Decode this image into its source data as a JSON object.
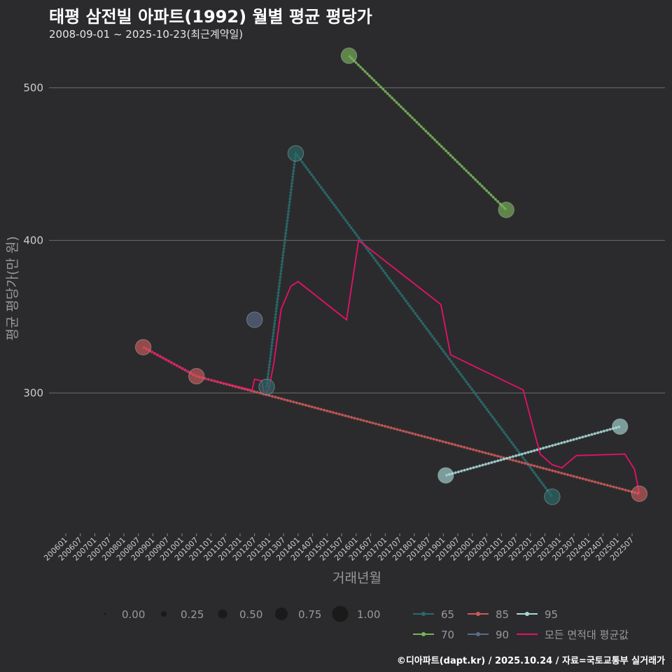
{
  "title": "태평 삼전빌 아파트(1992) 월별 평균 평당가",
  "subtitle": "2008-09-01 ~ 2025-10-23(최근계약일)",
  "caption": "©디아파트(dapt.kr) / 2025.10.24 / 자료=국토교통부 실거래가",
  "colors": {
    "background": "#2b2b2d",
    "grid": "#6e6e6e",
    "65": "#2a6b6b",
    "70": "#7ab35a",
    "85": "#cc5a5a",
    "90": "#5a6b8c",
    "95": "#a8d8d8",
    "all": "#e8106a"
  },
  "chart_data": {
    "type": "line",
    "title": "태평 삼전빌 아파트(1992) 월별 평균 평당가",
    "xlabel": "거래년월",
    "ylabel": "평균 평당가(만 원)",
    "ylim": [
      208,
      530
    ],
    "y_ticks": [
      300,
      400,
      500
    ],
    "x_tick_labels": [
      "200601",
      "200607",
      "200701",
      "200707",
      "200801",
      "200807",
      "200901",
      "200907",
      "201001",
      "201007",
      "201101",
      "201107",
      "201201",
      "201207",
      "201301",
      "201307",
      "201401",
      "201407",
      "201501",
      "201507",
      "201601",
      "201607",
      "201701",
      "201707",
      "201801",
      "201807",
      "201901",
      "201907",
      "202001",
      "202007",
      "202101",
      "202107",
      "202201",
      "202207",
      "202301",
      "202307",
      "202401",
      "202407",
      "202501",
      "202507"
    ],
    "series": [
      {
        "name": "65",
        "color_key": "65",
        "points": [
          {
            "x": "2012-12",
            "y": 304,
            "size": 0.45
          },
          {
            "x": "2013-12",
            "y": 457,
            "size": 0.45
          },
          {
            "x": "2022-10",
            "y": 232,
            "size": 0.45
          }
        ],
        "trend": [
          {
            "x": "2012-12",
            "y": 304
          },
          {
            "x": "2013-12",
            "y": 457
          },
          {
            "x": "2022-10",
            "y": 232
          }
        ]
      },
      {
        "name": "70",
        "color_key": "70",
        "points": [
          {
            "x": "2015-10",
            "y": 521,
            "size": 0.45
          },
          {
            "x": "2021-03",
            "y": 420,
            "size": 0.45
          }
        ],
        "trend": [
          {
            "x": "2015-10",
            "y": 521
          },
          {
            "x": "2021-03",
            "y": 420
          }
        ]
      },
      {
        "name": "85",
        "color_key": "85",
        "points": [
          {
            "x": "2008-09",
            "y": 330,
            "size": 0.45
          },
          {
            "x": "2010-07",
            "y": 311,
            "size": 0.45
          },
          {
            "x": "2025-10",
            "y": 234,
            "size": 0.45
          }
        ],
        "trend": [
          {
            "x": "2008-09",
            "y": 330
          },
          {
            "x": "2010-07",
            "y": 311
          },
          {
            "x": "2025-10",
            "y": 234
          }
        ]
      },
      {
        "name": "90",
        "color_key": "90",
        "points": [
          {
            "x": "2012-07",
            "y": 348,
            "size": 0.45
          }
        ],
        "trend": []
      },
      {
        "name": "95",
        "color_key": "95",
        "points": [
          {
            "x": "2019-02",
            "y": 246,
            "size": 0.45
          },
          {
            "x": "2025-02",
            "y": 278,
            "size": 0.45
          }
        ],
        "trend": [
          {
            "x": "2019-02",
            "y": 246
          },
          {
            "x": "2025-02",
            "y": 278
          }
        ]
      },
      {
        "name": "모든 면적대 평균값",
        "color_key": "all",
        "points": [],
        "line": [
          {
            "x": "2008-09",
            "y": 330
          },
          {
            "x": "2010-07",
            "y": 311
          },
          {
            "x": "2012-06",
            "y": 302
          },
          {
            "x": "2012-07",
            "y": 309
          },
          {
            "x": "2012-10",
            "y": 308
          },
          {
            "x": "2012-11",
            "y": 299
          },
          {
            "x": "2013-01",
            "y": 303
          },
          {
            "x": "2013-03",
            "y": 320
          },
          {
            "x": "2013-06",
            "y": 355
          },
          {
            "x": "2013-10",
            "y": 370
          },
          {
            "x": "2014-01",
            "y": 373
          },
          {
            "x": "2015-09",
            "y": 348
          },
          {
            "x": "2016-02",
            "y": 400
          },
          {
            "x": "2018-12",
            "y": 358
          },
          {
            "x": "2019-04",
            "y": 325
          },
          {
            "x": "2021-10",
            "y": 302
          },
          {
            "x": "2022-05",
            "y": 260
          },
          {
            "x": "2022-10",
            "y": 253
          },
          {
            "x": "2023-02",
            "y": 251
          },
          {
            "x": "2023-08",
            "y": 259
          },
          {
            "x": "2025-04",
            "y": 260
          },
          {
            "x": "2025-08",
            "y": 250
          },
          {
            "x": "2025-10",
            "y": 234
          }
        ]
      }
    ],
    "size_legend": {
      "values": [
        0.0,
        0.25,
        0.5,
        0.75,
        1.0
      ],
      "labels": [
        "0.00",
        "0.25",
        "0.50",
        "0.75",
        "1.00"
      ]
    },
    "color_legend": [
      "65",
      "85",
      "95",
      "70",
      "90",
      "모든 면적대 평균값"
    ]
  }
}
